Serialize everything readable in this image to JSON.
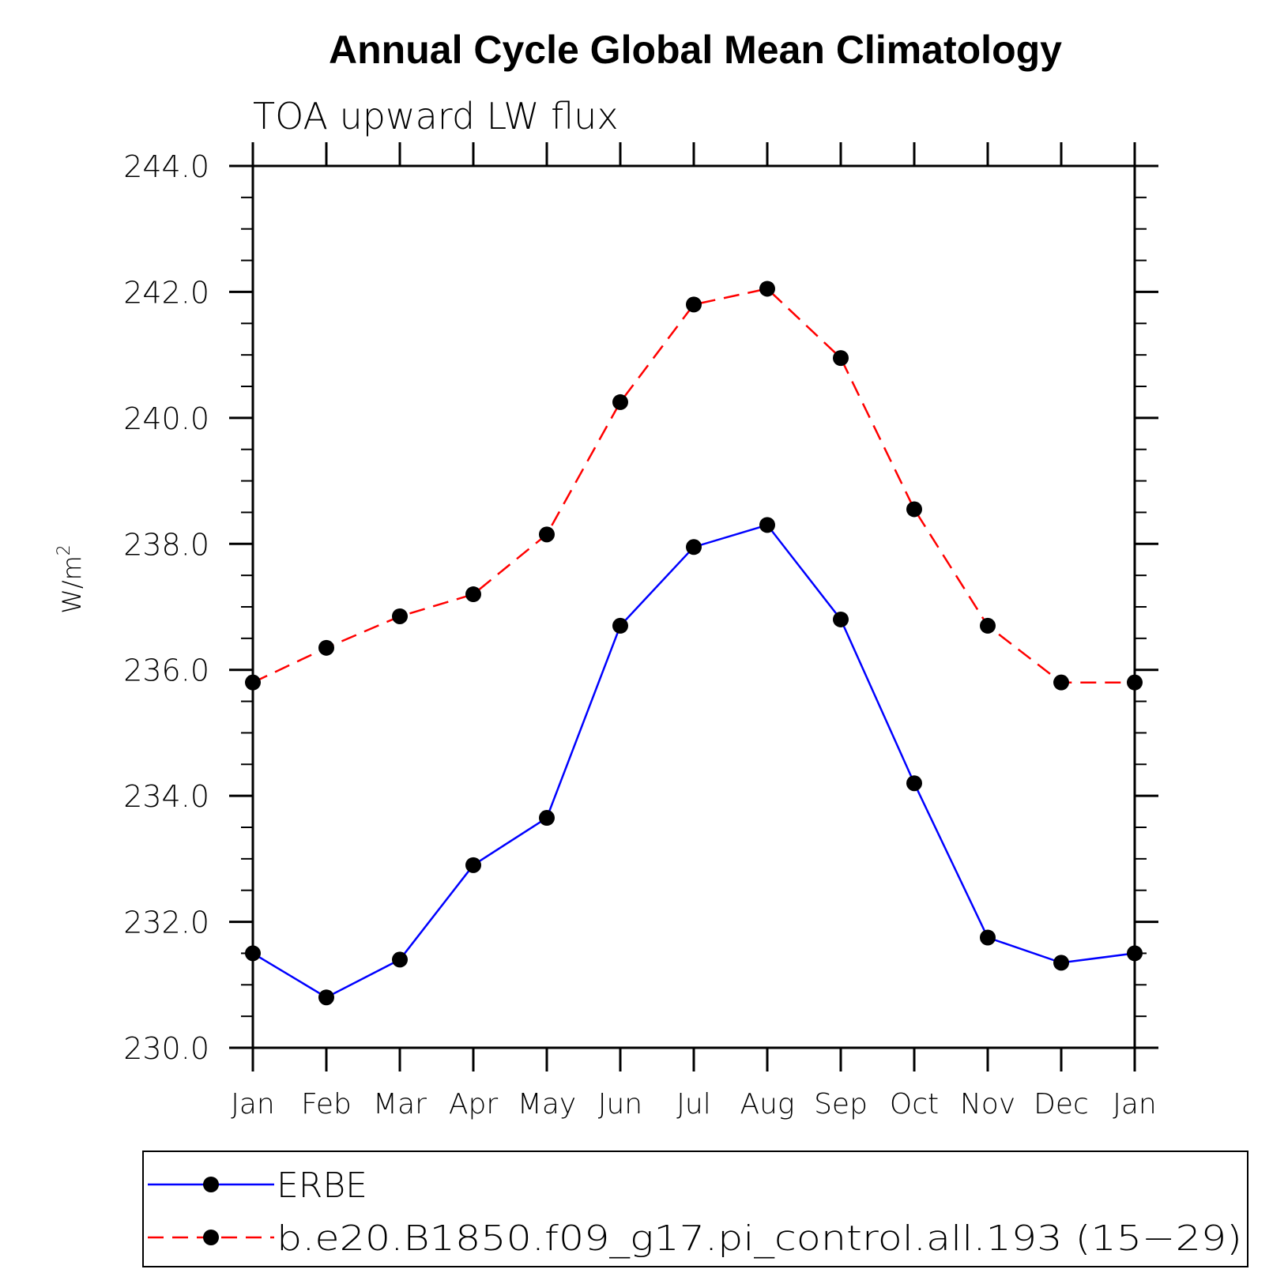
{
  "chart_data": {
    "type": "line",
    "title": "Annual Cycle Global Mean Climatology",
    "subtitle": "TOA upward LW flux",
    "ylabel": "W/m",
    "ylabel_superscript": "2",
    "ylim": [
      230.0,
      244.0
    ],
    "yticks": [
      "230.0",
      "232.0",
      "234.0",
      "236.0",
      "238.0",
      "240.0",
      "242.0",
      "244.0"
    ],
    "categories": [
      "Jan",
      "Feb",
      "Mar",
      "Apr",
      "May",
      "Jun",
      "Jul",
      "Aug",
      "Sep",
      "Oct",
      "Nov",
      "Dec",
      "Jan"
    ],
    "grid": false,
    "legend_position": "bottom",
    "series": [
      {
        "name": "ERBE",
        "color": "#0000ff",
        "line_style": "solid",
        "marker": "filled-circle",
        "values": [
          231.5,
          230.8,
          231.4,
          232.9,
          233.65,
          236.7,
          237.95,
          238.3,
          236.8,
          234.2,
          231.75,
          231.35,
          231.5
        ]
      },
      {
        "name": "b.e20.B1850.f09_g17.pi_control.all.193 (15−29)",
        "color": "#ff0000",
        "line_style": "dashed",
        "marker": "filled-circle",
        "values": [
          235.8,
          236.35,
          236.85,
          237.2,
          238.15,
          240.25,
          241.8,
          242.05,
          240.95,
          238.55,
          236.7,
          235.8,
          235.8
        ]
      }
    ]
  }
}
